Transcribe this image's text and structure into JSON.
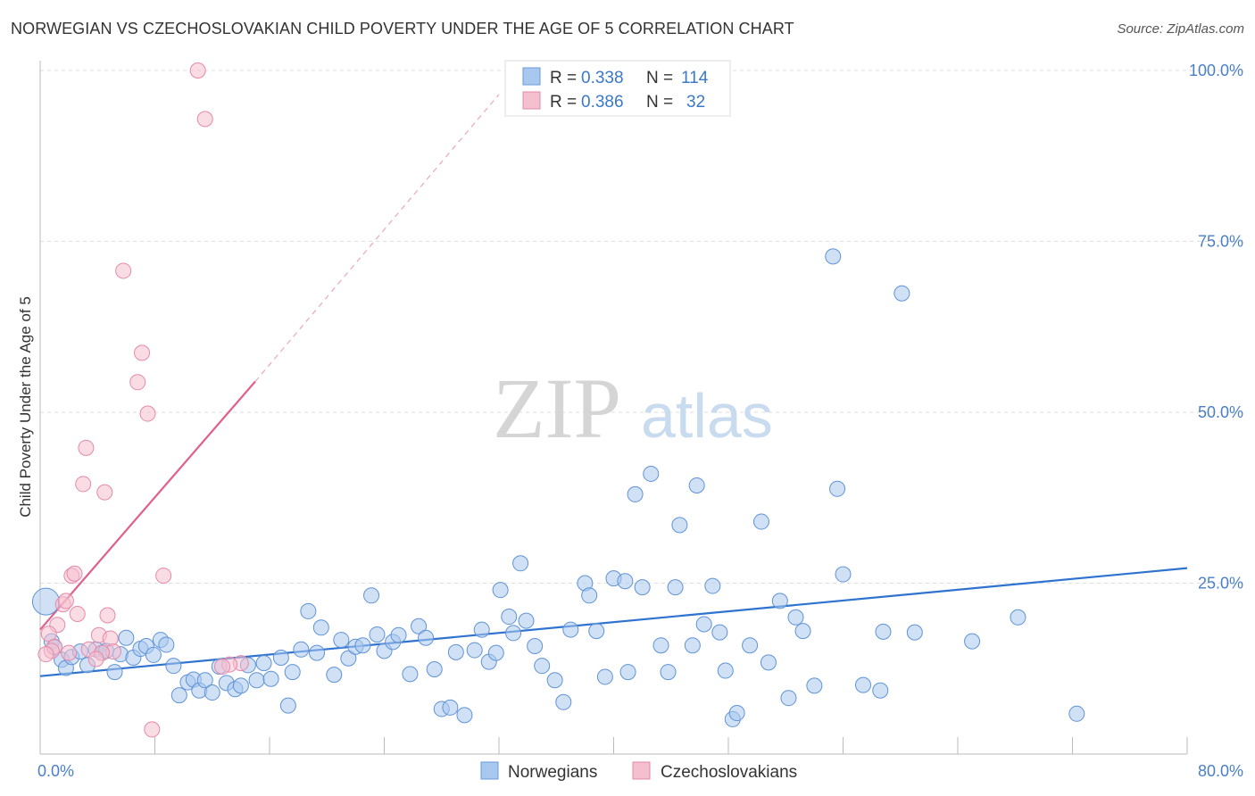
{
  "header": {
    "title": "NORWEGIAN VS CZECHOSLOVAKIAN CHILD POVERTY UNDER THE AGE OF 5 CORRELATION CHART",
    "source": "Source: ZipAtlas.com"
  },
  "watermark": {
    "zip": "ZIP",
    "atlas": "atlas"
  },
  "legend": {
    "rows": [
      {
        "r_label": "R = ",
        "r_value": "0.338",
        "n_label": "N = ",
        "n_value": "114",
        "color": "#a9c8ef"
      },
      {
        "r_label": "R = ",
        "r_value": "0.386",
        "n_label": "N = ",
        "n_value": "32",
        "color": "#f6bfd0"
      }
    ]
  },
  "chart_data": {
    "type": "scatter",
    "title": "NORWEGIAN VS CZECHOSLOVAKIAN CHILD POVERTY UNDER THE AGE OF 5 CORRELATION CHART",
    "xlabel": "",
    "ylabel": "Child Poverty Under the Age of 5",
    "xlim": [
      0,
      80
    ],
    "ylim": [
      0,
      100
    ],
    "x_tick_labels": [
      "0.0%",
      "80.0%"
    ],
    "y_tick_labels": [
      "25.0%",
      "50.0%",
      "75.0%",
      "100.0%"
    ],
    "y_ticks": [
      25,
      50,
      75,
      100
    ],
    "grid": true,
    "legend_position": "top-center",
    "colors": {
      "norwegians": "#a9c8ef",
      "norwegians_line": "#2f73d0",
      "czech": "#f6bfd0",
      "czech_line": "#e0608a"
    },
    "series": [
      {
        "name": "Norwegians",
        "r": 0.338,
        "n": 114,
        "trend": {
          "x0": 0,
          "y0": 11.4,
          "x1": 80,
          "y1": 27.2
        },
        "points": [
          [
            0.4,
            22.3
          ],
          [
            0.8,
            16.5
          ],
          [
            1.0,
            15.6
          ],
          [
            1.5,
            13.8
          ],
          [
            1.8,
            12.6
          ],
          [
            2.2,
            14.2
          ],
          [
            2.8,
            15.0
          ],
          [
            3.3,
            13.0
          ],
          [
            3.9,
            15.3
          ],
          [
            4.3,
            14.8
          ],
          [
            4.6,
            15.1
          ],
          [
            5.2,
            12.0
          ],
          [
            5.6,
            14.6
          ],
          [
            6.0,
            17.0
          ],
          [
            6.5,
            14.1
          ],
          [
            7.0,
            15.4
          ],
          [
            7.4,
            15.8
          ],
          [
            7.9,
            14.5
          ],
          [
            8.4,
            16.7
          ],
          [
            8.8,
            16.0
          ],
          [
            9.3,
            12.9
          ],
          [
            9.7,
            8.6
          ],
          [
            10.3,
            10.5
          ],
          [
            10.7,
            10.9
          ],
          [
            11.1,
            9.3
          ],
          [
            11.5,
            10.8
          ],
          [
            12.0,
            9.0
          ],
          [
            12.5,
            12.8
          ],
          [
            13.0,
            10.4
          ],
          [
            13.6,
            9.5
          ],
          [
            14.0,
            10.0
          ],
          [
            14.5,
            13.0
          ],
          [
            15.1,
            10.8
          ],
          [
            15.6,
            13.3
          ],
          [
            16.1,
            11.0
          ],
          [
            16.8,
            14.1
          ],
          [
            17.3,
            7.1
          ],
          [
            17.6,
            12.0
          ],
          [
            18.2,
            15.3
          ],
          [
            18.7,
            20.9
          ],
          [
            19.3,
            14.8
          ],
          [
            19.6,
            18.5
          ],
          [
            20.5,
            11.6
          ],
          [
            21.0,
            16.7
          ],
          [
            21.5,
            14.0
          ],
          [
            22.0,
            15.7
          ],
          [
            22.5,
            15.9
          ],
          [
            23.1,
            23.2
          ],
          [
            23.5,
            17.5
          ],
          [
            24.0,
            15.1
          ],
          [
            24.6,
            16.4
          ],
          [
            25.0,
            17.4
          ],
          [
            25.8,
            11.7
          ],
          [
            26.4,
            18.7
          ],
          [
            26.9,
            17.0
          ],
          [
            27.5,
            12.4
          ],
          [
            28.0,
            6.6
          ],
          [
            28.6,
            6.8
          ],
          [
            29.0,
            14.9
          ],
          [
            29.6,
            5.7
          ],
          [
            30.3,
            15.2
          ],
          [
            30.8,
            18.2
          ],
          [
            31.3,
            13.5
          ],
          [
            31.8,
            14.8
          ],
          [
            32.1,
            24.0
          ],
          [
            32.7,
            20.1
          ],
          [
            33.0,
            17.7
          ],
          [
            33.5,
            27.9
          ],
          [
            33.9,
            19.5
          ],
          [
            34.5,
            15.8
          ],
          [
            35.0,
            12.9
          ],
          [
            35.9,
            10.8
          ],
          [
            36.5,
            7.6
          ],
          [
            37.0,
            18.2
          ],
          [
            38.0,
            25.0
          ],
          [
            38.3,
            23.2
          ],
          [
            38.8,
            18.0
          ],
          [
            39.4,
            11.3
          ],
          [
            40.0,
            25.7
          ],
          [
            40.8,
            25.3
          ],
          [
            41.5,
            38.0
          ],
          [
            41.0,
            12.0
          ],
          [
            42.0,
            24.4
          ],
          [
            42.6,
            41.0
          ],
          [
            43.3,
            15.9
          ],
          [
            43.8,
            12.0
          ],
          [
            44.3,
            24.4
          ],
          [
            44.6,
            33.5
          ],
          [
            45.5,
            15.9
          ],
          [
            45.8,
            39.3
          ],
          [
            46.3,
            19.0
          ],
          [
            46.9,
            24.6
          ],
          [
            47.4,
            17.8
          ],
          [
            47.8,
            12.2
          ],
          [
            48.3,
            5.1
          ],
          [
            48.6,
            6.0
          ],
          [
            49.5,
            15.9
          ],
          [
            50.3,
            34.0
          ],
          [
            50.8,
            13.4
          ],
          [
            51.6,
            22.4
          ],
          [
            52.2,
            8.2
          ],
          [
            52.7,
            20.0
          ],
          [
            53.2,
            18.0
          ],
          [
            54.0,
            10.0
          ],
          [
            55.3,
            72.8
          ],
          [
            55.6,
            38.8
          ],
          [
            56.0,
            26.3
          ],
          [
            57.4,
            10.1
          ],
          [
            58.8,
            17.9
          ],
          [
            58.6,
            9.3
          ],
          [
            60.1,
            67.4
          ],
          [
            61.0,
            17.8
          ],
          [
            65.0,
            16.5
          ],
          [
            68.2,
            20.0
          ],
          [
            72.3,
            5.9
          ]
        ]
      },
      {
        "name": "Czechoslovakians",
        "r": 0.386,
        "n": 32,
        "trend": {
          "x0": 0,
          "y0": 18.2,
          "x1": 15,
          "y1": 54.5
        },
        "trend_dashed": {
          "x0": 15,
          "y0": 54.5,
          "x1": 32,
          "y1": 96.5
        },
        "points": [
          [
            11.0,
            100.0
          ],
          [
            11.5,
            92.9
          ],
          [
            5.8,
            70.7
          ],
          [
            7.1,
            58.7
          ],
          [
            6.8,
            54.4
          ],
          [
            7.5,
            49.8
          ],
          [
            3.2,
            44.8
          ],
          [
            3.0,
            39.5
          ],
          [
            4.5,
            38.3
          ],
          [
            2.2,
            26.1
          ],
          [
            2.4,
            26.4
          ],
          [
            8.6,
            26.1
          ],
          [
            1.6,
            21.9
          ],
          [
            1.8,
            22.4
          ],
          [
            2.6,
            20.5
          ],
          [
            4.7,
            20.3
          ],
          [
            1.2,
            18.9
          ],
          [
            0.6,
            17.6
          ],
          [
            4.1,
            17.4
          ],
          [
            4.9,
            16.9
          ],
          [
            1.0,
            15.7
          ],
          [
            0.8,
            15.1
          ],
          [
            2.0,
            14.8
          ],
          [
            3.4,
            15.3
          ],
          [
            5.1,
            15.0
          ],
          [
            4.3,
            14.8
          ],
          [
            0.4,
            14.6
          ],
          [
            3.9,
            13.9
          ],
          [
            14.0,
            13.3
          ],
          [
            13.2,
            13.1
          ],
          [
            12.7,
            12.8
          ],
          [
            7.8,
            3.6
          ]
        ]
      }
    ]
  },
  "bottom_legend": [
    {
      "label": "Norwegians",
      "color": "#a9c8ef"
    },
    {
      "label": "Czechoslovakians",
      "color": "#f6bfd0"
    }
  ]
}
